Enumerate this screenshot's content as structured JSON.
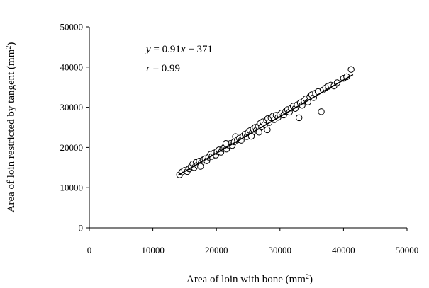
{
  "chart_data": {
    "type": "scatter",
    "xlabel": "Area of loin with bone (mm",
    "xlabel_unit_sup": "2",
    "xlabel_close": ")",
    "ylabel": "Area of loin restricted by tangent (mm",
    "ylabel_unit_sup": "2",
    "ylabel_close": ")",
    "xlim": [
      0,
      50000
    ],
    "ylim": [
      0,
      50000
    ],
    "x_ticks": [
      "0",
      "10000",
      "20000",
      "30000",
      "40000",
      "50000"
    ],
    "y_ticks": [
      "0",
      "10000",
      "20000",
      "30000",
      "40000",
      "50000"
    ],
    "grid": false,
    "annotation": {
      "eq_var_y": "y",
      "eq_body": " = 0.91",
      "eq_var_x": "x",
      "eq_tail": " + 371",
      "r_var": "r",
      "r_body": " = 0.99"
    },
    "trendline": {
      "slope": 0.91,
      "intercept": 371,
      "x_range": [
        14000,
        41500
      ]
    },
    "points": [
      [
        14200,
        13200
      ],
      [
        14600,
        13900
      ],
      [
        15000,
        14300
      ],
      [
        15400,
        14000
      ],
      [
        15700,
        14700
      ],
      [
        16000,
        15200
      ],
      [
        16300,
        15900
      ],
      [
        16500,
        15000
      ],
      [
        16800,
        16300
      ],
      [
        17000,
        15600
      ],
      [
        17300,
        16600
      ],
      [
        17600,
        16100
      ],
      [
        17900,
        16900
      ],
      [
        18200,
        17200
      ],
      [
        18500,
        16700
      ],
      [
        18800,
        17600
      ],
      [
        19100,
        18300
      ],
      [
        19300,
        17800
      ],
      [
        19600,
        18600
      ],
      [
        19900,
        18100
      ],
      [
        20100,
        19000
      ],
      [
        20400,
        19400
      ],
      [
        20700,
        18800
      ],
      [
        21000,
        19700
      ],
      [
        21300,
        20100
      ],
      [
        21600,
        19600
      ],
      [
        21900,
        20600
      ],
      [
        22200,
        21000
      ],
      [
        22500,
        20500
      ],
      [
        22800,
        21400
      ],
      [
        23000,
        22700
      ],
      [
        23300,
        21900
      ],
      [
        23600,
        22300
      ],
      [
        23900,
        21800
      ],
      [
        24200,
        22800
      ],
      [
        24500,
        23300
      ],
      [
        24800,
        22700
      ],
      [
        25000,
        23700
      ],
      [
        25300,
        24200
      ],
      [
        25600,
        23600
      ],
      [
        25800,
        24600
      ],
      [
        26100,
        25000
      ],
      [
        26300,
        24300
      ],
      [
        26600,
        25300
      ],
      [
        26900,
        26000
      ],
      [
        27100,
        25100
      ],
      [
        27300,
        26400
      ],
      [
        27600,
        25700
      ],
      [
        27900,
        26800
      ],
      [
        28100,
        27200
      ],
      [
        28300,
        26200
      ],
      [
        28600,
        27400
      ],
      [
        28900,
        27800
      ],
      [
        29100,
        26900
      ],
      [
        29400,
        28000
      ],
      [
        29700,
        27500
      ],
      [
        30000,
        28200
      ],
      [
        30300,
        28600
      ],
      [
        30600,
        28100
      ],
      [
        30900,
        29000
      ],
      [
        31200,
        29400
      ],
      [
        31500,
        28800
      ],
      [
        31800,
        29800
      ],
      [
        32100,
        30300
      ],
      [
        32400,
        29700
      ],
      [
        32700,
        30600
      ],
      [
        33000,
        27400
      ],
      [
        33200,
        31100
      ],
      [
        33500,
        30500
      ],
      [
        33800,
        31600
      ],
      [
        34100,
        32100
      ],
      [
        34400,
        31300
      ],
      [
        34700,
        32600
      ],
      [
        35000,
        33100
      ],
      [
        35300,
        32400
      ],
      [
        35600,
        33500
      ],
      [
        36000,
        33900
      ],
      [
        36500,
        28900
      ],
      [
        36800,
        34300
      ],
      [
        37200,
        34800
      ],
      [
        37600,
        35200
      ],
      [
        38000,
        35500
      ],
      [
        38500,
        35300
      ],
      [
        39000,
        36100
      ],
      [
        40000,
        37200
      ],
      [
        40500,
        37600
      ],
      [
        41200,
        39400
      ],
      [
        26700,
        23800
      ],
      [
        25500,
        22800
      ],
      [
        28000,
        24400
      ],
      [
        21500,
        21000
      ],
      [
        17500,
        15300
      ]
    ]
  }
}
